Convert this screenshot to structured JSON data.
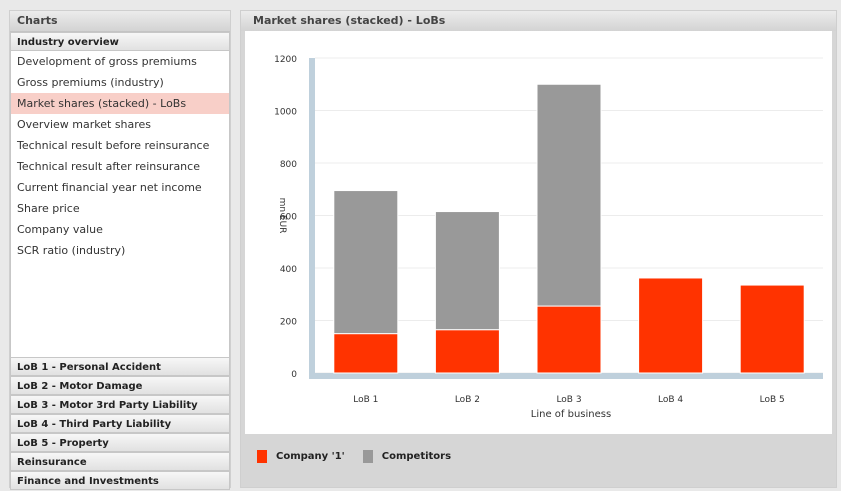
{
  "left_panel": {
    "title": "Charts",
    "sections": [
      "Industry overview",
      "LoB 1 - Personal Accident",
      "LoB 2 - Motor Damage",
      "LoB 3 - Motor 3rd Party Liability",
      "LoB 4 - Third Party Liability",
      "LoB 5 - Property",
      "Reinsurance",
      "Finance and Investments"
    ],
    "items": [
      "Development of gross premiums",
      "Gross premiums (industry)",
      "Market shares (stacked) - LoBs",
      "Overview market shares",
      "Technical result before reinsurance",
      "Technical result after reinsurance",
      "Current financial year net income",
      "Share price",
      "Company value",
      "SCR ratio (industry)"
    ],
    "selected_item_index": 2
  },
  "right_panel": {
    "title": "Market shares (stacked) - LoBs"
  },
  "colors": {
    "company": "#ff3300",
    "competitors": "#999999",
    "axis": "#bfd0dc",
    "selected": "#f8cfc8"
  },
  "chart_data": {
    "type": "bar",
    "stacked": true,
    "categories": [
      "LoB 1",
      "LoB 2",
      "LoB 3",
      "LoB 4",
      "LoB 5"
    ],
    "series": [
      {
        "name": "Company '1'",
        "values": [
          150,
          165,
          255,
          362,
          335
        ],
        "color": "#ff3300"
      },
      {
        "name": "Competitors",
        "values": [
          545,
          450,
          845,
          0,
          0
        ],
        "color": "#999999"
      }
    ],
    "xlabel": "Line of business",
    "ylabel": "mn EUR",
    "ylim": [
      0,
      1200
    ],
    "yticks": [
      0,
      200,
      400,
      600,
      800,
      1000,
      1200
    ],
    "grid": true,
    "legend": "bottom"
  }
}
